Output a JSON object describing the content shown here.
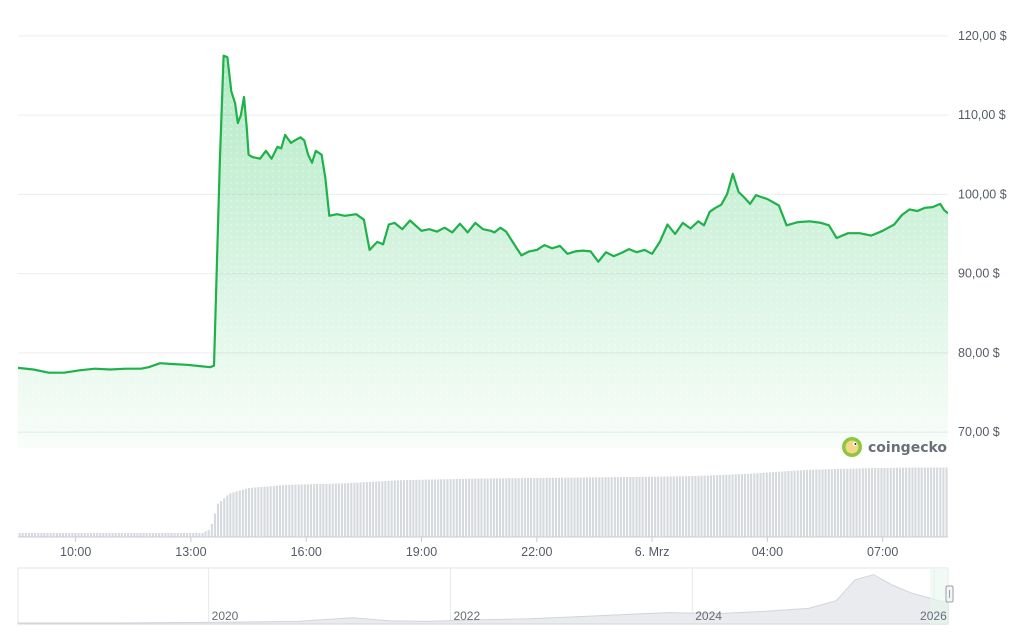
{
  "chart_data": {
    "type": "area",
    "currency_suffix": " $",
    "colors": {
      "line": "#1fb14a",
      "fill": "#27c25a",
      "grid": "#ecedf0",
      "volume": "#d6d9dd",
      "navigator": "#e9ebee",
      "axis_text": "#555b66"
    },
    "y_ticks": [
      "120,00 $",
      "110,00 $",
      "100,00 $",
      "90,00 $",
      "80,00 $",
      "70,00 $"
    ],
    "y_tick_values": [
      120,
      110,
      100,
      90,
      80,
      70
    ],
    "ylim": [
      68,
      122
    ],
    "x_ticks": [
      "10:00",
      "13:00",
      "16:00",
      "19:00",
      "22:00",
      "6. Mrz",
      "04:00",
      "07:00"
    ],
    "x_tick_times": [
      1.5,
      4.5,
      7.5,
      10.5,
      13.5,
      16.5,
      19.5,
      22.5
    ],
    "x_range": [
      0,
      24.2
    ],
    "series": [
      {
        "x": [
          0,
          0.4,
          0.8,
          1.2,
          1.6,
          2.0,
          2.4,
          2.8,
          3.2,
          3.4,
          3.7,
          4.0,
          4.4,
          4.8,
          5.0,
          5.1,
          5.25,
          5.35,
          5.45,
          5.55,
          5.65,
          5.72,
          5.8,
          5.88,
          5.95,
          6.0,
          6.1,
          6.3,
          6.45,
          6.6,
          6.75,
          6.85,
          6.95,
          7.1,
          7.2,
          7.35,
          7.45,
          7.55,
          7.65,
          7.75,
          7.9,
          8.0,
          8.1,
          8.3,
          8.5,
          8.8,
          9.0,
          9.15,
          9.35,
          9.5,
          9.65,
          9.8,
          10.0,
          10.2,
          10.5,
          10.7,
          10.9,
          11.1,
          11.3,
          11.5,
          11.7,
          11.9,
          12.1,
          12.3,
          12.4,
          12.55,
          12.7,
          12.9,
          13.1,
          13.3,
          13.5,
          13.7,
          13.9,
          14.1,
          14.3,
          14.5,
          14.7,
          14.9,
          15.1,
          15.3,
          15.5,
          15.7,
          15.9,
          16.1,
          16.3,
          16.5,
          16.7,
          16.9,
          17.1,
          17.3,
          17.5,
          17.7,
          17.85,
          18.0,
          18.15,
          18.3,
          18.45,
          18.6,
          18.75,
          18.9,
          19.05,
          19.2,
          19.5,
          19.8,
          20.0,
          20.3,
          20.6,
          20.9,
          21.1,
          21.3,
          21.6,
          21.9,
          22.2,
          22.5,
          22.8,
          23.0,
          23.2,
          23.4,
          23.6,
          23.8,
          24.0,
          24.1,
          24.2
        ],
        "values": [
          78.1,
          77.9,
          77.5,
          77.5,
          77.8,
          78.0,
          77.9,
          78.0,
          78.0,
          78.2,
          78.7,
          78.6,
          78.5,
          78.3,
          78.2,
          78.4,
          104.0,
          117.5,
          117.3,
          113.0,
          111.5,
          109.0,
          110.0,
          112.3,
          108.5,
          105.0,
          104.7,
          104.5,
          105.5,
          104.5,
          106.0,
          105.8,
          107.5,
          106.5,
          106.8,
          107.2,
          106.8,
          105.0,
          104.0,
          105.5,
          105.0,
          102.0,
          97.3,
          97.5,
          97.3,
          97.5,
          96.8,
          93.0,
          94.0,
          93.7,
          96.2,
          96.4,
          95.6,
          96.7,
          95.4,
          95.6,
          95.3,
          95.8,
          95.2,
          96.3,
          95.2,
          96.4,
          95.6,
          95.4,
          95.2,
          95.8,
          95.3,
          93.8,
          92.3,
          92.8,
          93.0,
          93.6,
          93.2,
          93.5,
          92.5,
          92.8,
          92.9,
          92.8,
          91.5,
          92.7,
          92.2,
          92.6,
          93.1,
          92.7,
          93.0,
          92.5,
          94.0,
          96.2,
          95.0,
          96.4,
          95.7,
          96.6,
          96.1,
          97.8,
          98.3,
          98.7,
          100.0,
          102.6,
          100.3,
          99.6,
          98.8,
          99.9,
          99.4,
          98.6,
          96.1,
          96.5,
          96.6,
          96.4,
          96.1,
          94.5,
          95.1,
          95.1,
          94.8,
          95.4,
          96.2,
          97.4,
          98.1,
          97.9,
          98.3,
          98.4,
          98.8,
          98.0,
          97.6
        ]
      }
    ],
    "volume_relative": {
      "x": [
        0,
        4.8,
        5.0,
        5.2,
        5.5,
        6.0,
        7.0,
        8.5,
        10.0,
        12.0,
        14.0,
        16.0,
        17.5,
        19.0,
        20.5,
        22.0,
        23.3,
        24.2
      ],
      "values": [
        0.05,
        0.05,
        0.1,
        0.42,
        0.55,
        0.62,
        0.66,
        0.68,
        0.72,
        0.74,
        0.75,
        0.76,
        0.77,
        0.8,
        0.85,
        0.87,
        0.88,
        0.88
      ]
    },
    "navigator": {
      "ticks": [
        "2020",
        "2022",
        "2024",
        "2026"
      ],
      "tick_positions": [
        0.205,
        0.465,
        0.725,
        0.985
      ],
      "relative_x": [
        0,
        0.1,
        0.2,
        0.3,
        0.36,
        0.4,
        0.44,
        0.5,
        0.55,
        0.6,
        0.65,
        0.7,
        0.75,
        0.8,
        0.85,
        0.88,
        0.9,
        0.92,
        0.94,
        0.96,
        0.98,
        1.0
      ],
      "relative_values": [
        0.02,
        0.02,
        0.03,
        0.05,
        0.12,
        0.06,
        0.05,
        0.08,
        0.1,
        0.14,
        0.18,
        0.22,
        0.2,
        0.24,
        0.3,
        0.45,
        0.85,
        0.95,
        0.75,
        0.6,
        0.5,
        0.4
      ]
    },
    "watermark": "coingecko"
  }
}
